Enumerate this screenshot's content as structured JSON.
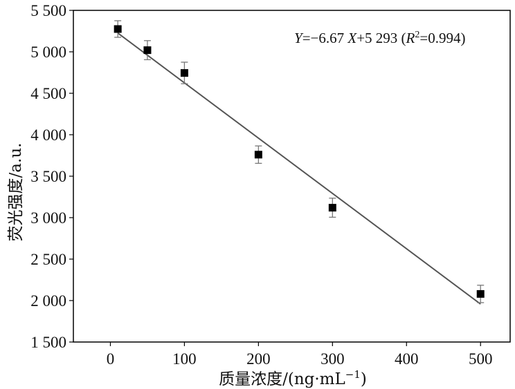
{
  "chart_data": {
    "type": "scatter",
    "title": "",
    "xlabel": "质量浓度/(ng·mL−1)",
    "xlabel_parts": {
      "main": "质量浓度/(ng·mL",
      "sup": "−1",
      "close": ")"
    },
    "ylabel": "荧光强度/a.u.",
    "xlim": [
      -50,
      540
    ],
    "ylim": [
      1500,
      5500
    ],
    "x_ticks": [
      0,
      100,
      200,
      300,
      400,
      500
    ],
    "y_ticks": [
      1500,
      2000,
      2500,
      3000,
      3500,
      4000,
      4500,
      5000,
      5500
    ],
    "x_tick_labels": [
      "0",
      "100",
      "200",
      "300",
      "400",
      "500"
    ],
    "y_tick_labels": [
      "1 500",
      "2 000",
      "2 500",
      "3 000",
      "3 500",
      "4 000",
      "4 500",
      "5 000",
      "5 500"
    ],
    "grid": false,
    "series": [
      {
        "x": [
          10,
          50,
          100,
          200,
          300,
          500
        ],
        "y": [
          5275,
          5020,
          4745,
          3760,
          3120,
          2080
        ],
        "error": [
          100,
          115,
          130,
          105,
          115,
          105
        ],
        "marker": "square",
        "color": "#000000"
      }
    ],
    "fit": {
      "slope": -6.67,
      "intercept": 5293,
      "x_range": [
        10,
        500
      ],
      "color": "#555555"
    },
    "annotation": {
      "y_var": "Y",
      "eq_mid": "=−6.67 ",
      "x_var": "X",
      "eq_tail": "+5 293 (",
      "r_var": "R",
      "r_sup": "2",
      "r_tail": "=0.994)"
    }
  }
}
